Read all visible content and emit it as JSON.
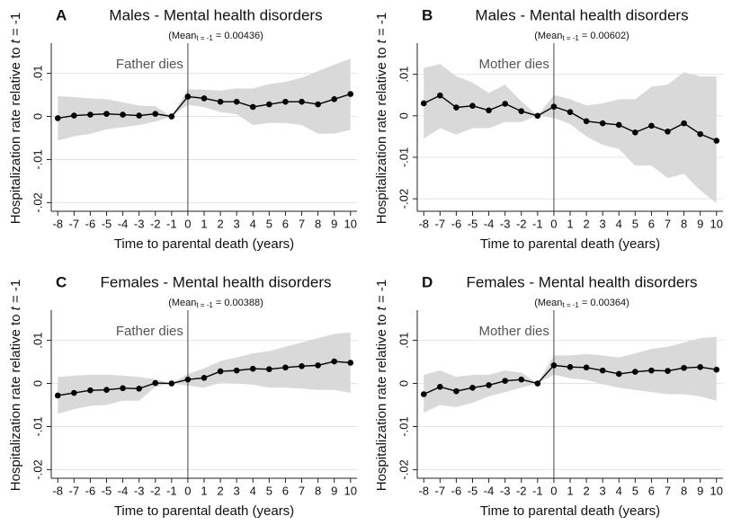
{
  "chart_data": [
    {
      "type": "line",
      "panel": "A",
      "title": "Males - Mental health disorders",
      "subtitle": {
        "prefix": "(Mean",
        "subscript": "t = -1",
        "suffix": " = 0.00436)"
      },
      "ylabel": [
        "Hospitalization rate relative to ",
        "t",
        " = -1"
      ],
      "xlabel": "Time to parental death (years)",
      "annotation": "Father dies",
      "vline": 0,
      "x": [
        -8,
        -7,
        -6,
        -5,
        -4,
        -3,
        -2,
        -1,
        0,
        1,
        2,
        3,
        4,
        5,
        6,
        7,
        8,
        9,
        10
      ],
      "values": [
        -0.0004,
        0.0002,
        0.0004,
        0.0006,
        0.0004,
        0.0002,
        0.0006,
        0,
        0.0046,
        0.0042,
        0.0034,
        0.0034,
        0.0022,
        0.0028,
        0.0034,
        0.0034,
        0.0028,
        0.004,
        0.0052
      ],
      "ci_upper": [
        0.0047,
        0.0045,
        0.0042,
        0.004,
        0.0033,
        0.0025,
        0.0024,
        0,
        0.0063,
        0.0062,
        0.006,
        0.0065,
        0.0065,
        0.0075,
        0.008,
        0.009,
        0.0105,
        0.012,
        0.0134
      ],
      "ci_lower": [
        -0.0056,
        -0.0046,
        -0.004,
        -0.003,
        -0.0025,
        -0.002,
        -0.0012,
        0,
        0.0027,
        0.0022,
        0.001,
        0.0005,
        -0.002,
        -0.0015,
        -0.0015,
        -0.002,
        -0.004,
        -0.004,
        -0.0031
      ],
      "color": "#000000",
      "band_color": "#d9d9d9",
      "xlim": [
        -8.4,
        10.4
      ],
      "xticks": [
        -8,
        -7,
        -6,
        -5,
        -4,
        -3,
        -2,
        -1,
        0,
        1,
        2,
        3,
        4,
        5,
        6,
        7,
        8,
        9,
        10
      ],
      "ylim": [
        -0.022,
        0.017
      ],
      "yticks": [
        {
          "value": -0.02,
          "label": "-.02"
        },
        {
          "value": -0.01,
          "label": "-.01"
        },
        0,
        {
          "value": 0.01,
          "label": ".01"
        }
      ],
      "grid": true
    },
    {
      "type": "line",
      "panel": "B",
      "title": "Males - Mental health disorders",
      "subtitle": {
        "prefix": "(Mean",
        "subscript": "t = -1",
        "suffix": " = 0.00602)"
      },
      "ylabel": [
        "Hospitalization rate relative to ",
        "t",
        " = -1"
      ],
      "xlabel": "Time to parental death (years)",
      "annotation": "Mother dies",
      "vline": 0,
      "x": [
        -8,
        -7,
        -6,
        -5,
        -4,
        -3,
        -2,
        -1,
        0,
        1,
        2,
        3,
        4,
        5,
        6,
        7,
        8,
        9,
        10
      ],
      "values": [
        0.003,
        0.0049,
        0.002,
        0.0024,
        0.0013,
        0.0029,
        0.0011,
        0,
        0.0022,
        0.0009,
        -0.0013,
        -0.0018,
        -0.0022,
        -0.004,
        -0.0024,
        -0.0038,
        -0.0018,
        -0.0044,
        -0.006
      ],
      "ci_upper": [
        0.0115,
        0.0125,
        0.0095,
        0.008,
        0.0055,
        0.0075,
        0.0035,
        0,
        0.005,
        0.004,
        0.0025,
        0.003,
        0.004,
        0.004,
        0.007,
        0.0075,
        0.0105,
        0.0095,
        0.0095
      ],
      "ci_lower": [
        -0.0055,
        -0.003,
        -0.0045,
        -0.003,
        -0.003,
        -0.0015,
        -0.0015,
        0,
        -0.0005,
        -0.002,
        -0.005,
        -0.007,
        -0.008,
        -0.012,
        -0.012,
        -0.015,
        -0.014,
        -0.018,
        -0.021
      ],
      "color": "#000000",
      "band_color": "#d9d9d9",
      "xlim": [
        -8.4,
        10.4
      ],
      "xticks": [
        -8,
        -7,
        -6,
        -5,
        -4,
        -3,
        -2,
        -1,
        0,
        1,
        2,
        3,
        4,
        5,
        6,
        7,
        8,
        9,
        10
      ],
      "ylim": [
        -0.023,
        0.0175
      ],
      "yticks": [
        {
          "value": -0.02,
          "label": "-.02"
        },
        {
          "value": -0.01,
          "label": "-.01"
        },
        0,
        {
          "value": 0.01,
          "label": ".01"
        }
      ],
      "grid": true
    },
    {
      "type": "line",
      "panel": "C",
      "title": "Females - Mental health disorders",
      "subtitle": {
        "prefix": "(Mean",
        "subscript": "t = -1",
        "suffix": " = 0.00388)"
      },
      "ylabel": [
        "Hospitalization rate relative to ",
        "t",
        " = -1"
      ],
      "xlabel": "Time to parental death (years)",
      "annotation": "Father dies",
      "vline": 0,
      "x": [
        -8,
        -7,
        -6,
        -5,
        -4,
        -3,
        -2,
        -1,
        0,
        1,
        2,
        3,
        4,
        5,
        6,
        7,
        8,
        9,
        10
      ],
      "values": [
        -0.0028,
        -0.0022,
        -0.0016,
        -0.0015,
        -0.0011,
        -0.0012,
        0.0001,
        0,
        0.0009,
        0.0013,
        0.0028,
        0.003,
        0.0034,
        0.0033,
        0.0037,
        0.004,
        0.0042,
        0.0051,
        0.0048
      ],
      "ci_upper": [
        0.0015,
        0.0018,
        0.002,
        0.002,
        0.0018,
        0.0015,
        0.001,
        0,
        0.0022,
        0.0035,
        0.0052,
        0.006,
        0.007,
        0.0075,
        0.0085,
        0.0095,
        0.0105,
        0.0115,
        0.0118
      ],
      "ci_lower": [
        -0.007,
        -0.006,
        -0.0052,
        -0.005,
        -0.004,
        -0.004,
        -0.0008,
        0,
        -0.0005,
        -0.001,
        0.0002,
        0,
        -0.0003,
        -0.001,
        -0.001,
        -0.0012,
        -0.0015,
        -0.0015,
        -0.0022
      ],
      "color": "#000000",
      "band_color": "#d9d9d9",
      "xlim": [
        -8.4,
        10.4
      ],
      "xticks": [
        -8,
        -7,
        -6,
        -5,
        -4,
        -3,
        -2,
        -1,
        0,
        1,
        2,
        3,
        4,
        5,
        6,
        7,
        8,
        9,
        10
      ],
      "ylim": [
        -0.022,
        0.017
      ],
      "yticks": [
        {
          "value": -0.02,
          "label": "-.02"
        },
        {
          "value": -0.01,
          "label": "-.01"
        },
        0,
        {
          "value": 0.01,
          "label": ".01"
        }
      ],
      "grid": true
    },
    {
      "type": "line",
      "panel": "D",
      "title": "Females - Mental health disorders",
      "subtitle": {
        "prefix": "(Mean",
        "subscript": "t = -1",
        "suffix": " = 0.00364)"
      },
      "ylabel": [
        "Hospitalization rate relative to ",
        "t",
        " = -1"
      ],
      "xlabel": "Time to parental death (years)",
      "annotation": "Mother dies",
      "vline": 0,
      "x": [
        -8,
        -7,
        -6,
        -5,
        -4,
        -3,
        -2,
        -1,
        0,
        1,
        2,
        3,
        4,
        5,
        6,
        7,
        8,
        9,
        10
      ],
      "values": [
        -0.0025,
        -0.0008,
        -0.0018,
        -0.001,
        -0.0004,
        0.0006,
        0.0009,
        0,
        0.0042,
        0.0038,
        0.0037,
        0.003,
        0.0022,
        0.0027,
        0.003,
        0.0029,
        0.0036,
        0.0038,
        0.0032
      ],
      "ci_upper": [
        0.002,
        0.003,
        0.0015,
        0.002,
        0.002,
        0.003,
        0.0025,
        0,
        0.0065,
        0.0065,
        0.0068,
        0.0065,
        0.006,
        0.007,
        0.008,
        0.0085,
        0.0095,
        0.0105,
        0.0108
      ],
      "ci_lower": [
        -0.0068,
        -0.005,
        -0.0055,
        -0.0045,
        -0.003,
        -0.002,
        -0.001,
        0,
        0.002,
        0.0012,
        0.0008,
        -0.0002,
        -0.001,
        -0.0015,
        -0.002,
        -0.0025,
        -0.0025,
        -0.003,
        -0.004
      ],
      "color": "#000000",
      "band_color": "#d9d9d9",
      "xlim": [
        -8.4,
        10.4
      ],
      "xticks": [
        -8,
        -7,
        -6,
        -5,
        -4,
        -3,
        -2,
        -1,
        0,
        1,
        2,
        3,
        4,
        5,
        6,
        7,
        8,
        9,
        10
      ],
      "ylim": [
        -0.022,
        0.017
      ],
      "yticks": [
        {
          "value": -0.02,
          "label": "-.02"
        },
        {
          "value": -0.01,
          "label": "-.01"
        },
        0,
        {
          "value": 0.01,
          "label": ".01"
        }
      ],
      "grid": true
    }
  ]
}
